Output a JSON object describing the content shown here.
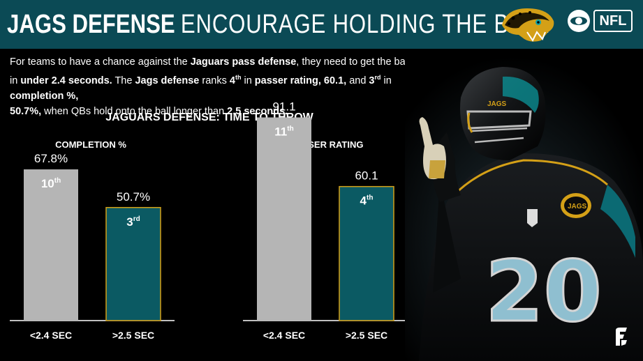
{
  "header": {
    "title_bold": "JAGS DEFENSE",
    "title_rest": "ENCOURAGE HOLDING THE BALL",
    "nfl_logo": "NFL",
    "team_color": "#0b4a55",
    "accent_gold": "#d4a017"
  },
  "intro": {
    "p1": "For teams to have a chance against the ",
    "p2": "Jaguars pass defense",
    "p3": ", they need to get the ball out in ",
    "p4": "under 2.4 seconds.",
    "p5": " The ",
    "p6": "Jags defense",
    "p7": " ranks ",
    "p8": "4",
    "p8s": "th",
    "p9": " in ",
    "p10": "passer rating, 60.1,",
    "p11": " and ",
    "p12": "3",
    "p12s": "rd",
    "p13": " in ",
    "p14": "completion %,",
    "p15": "50.7%,",
    "p16": " when QBs hold onto the ball longer than ",
    "p17": "2.5 seconds."
  },
  "chart_data": [
    {
      "type": "bar",
      "title": "JAGUARS DEFENSE: TIME TO THROW",
      "subtitle": "COMPLETION %",
      "categories": [
        "<2.4 SEC",
        ">2.5 SEC"
      ],
      "values": [
        67.8,
        50.7
      ],
      "value_labels": [
        "67.8%",
        "50.7%"
      ],
      "rank_labels": [
        [
          "10",
          "th"
        ],
        [
          "3",
          "rd"
        ]
      ],
      "colors": [
        "#b5b5b5",
        "#0b5a63"
      ],
      "ylim": [
        0,
        100
      ]
    },
    {
      "type": "bar",
      "subtitle": "PASSER RATING",
      "categories": [
        "<2.4 SEC",
        ">2.5 SEC"
      ],
      "values": [
        91.1,
        60.1
      ],
      "value_labels": [
        "91.1",
        "60.1"
      ],
      "rank_labels": [
        [
          "11",
          "th"
        ],
        [
          "4",
          "th"
        ]
      ],
      "colors": [
        "#b5b5b5",
        "#0b5a63"
      ],
      "ylim": [
        0,
        100
      ]
    }
  ],
  "decor": {
    "jaguar_logo_icon": "jaguar-head-icon",
    "network_logo_icon": "cbs-eye-icon",
    "player_image": "player-photo",
    "watermark_icon": "pff-icon",
    "jersey_number": "20",
    "helmet_text": "JAGS"
  }
}
